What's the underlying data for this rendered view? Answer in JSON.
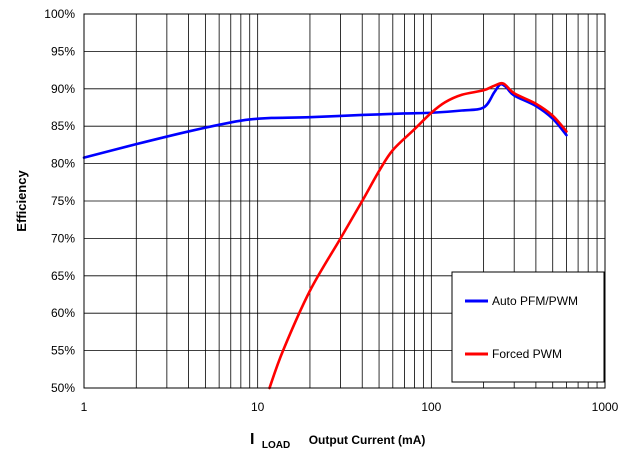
{
  "chart_data": {
    "type": "line",
    "title": "",
    "ylabel": "Efficiency",
    "xlabel": {
      "main": "I",
      "subscript": "LOAD",
      "rest": "Output Current (mA)"
    },
    "x_scale": "log",
    "xlim": [
      1,
      1000
    ],
    "ylim": [
      50,
      100
    ],
    "x_ticks": [
      {
        "value": 1,
        "label": "1"
      },
      {
        "value": 10,
        "label": "10"
      },
      {
        "value": 100,
        "label": "100"
      },
      {
        "value": 1000,
        "label": "1000"
      }
    ],
    "y_ticks": [
      {
        "value": 100,
        "label": "100%"
      },
      {
        "value": 95,
        "label": "95%"
      },
      {
        "value": 90,
        "label": "90%"
      },
      {
        "value": 85,
        "label": "85%"
      },
      {
        "value": 80,
        "label": "80%"
      },
      {
        "value": 75,
        "label": "75%"
      },
      {
        "value": 70,
        "label": "70%"
      },
      {
        "value": 65,
        "label": "65%"
      },
      {
        "value": 60,
        "label": "60%"
      },
      {
        "value": 55,
        "label": "55%"
      },
      {
        "value": 50,
        "label": "50%"
      }
    ],
    "grid": true,
    "legend_position": "bottom-right",
    "series": [
      {
        "name": "Auto PFM/PWM",
        "color": "#0000ff",
        "points": [
          [
            1,
            80.8
          ],
          [
            2,
            82.6
          ],
          [
            4,
            84.3
          ],
          [
            7,
            85.5
          ],
          [
            9,
            85.9
          ],
          [
            12,
            86.1
          ],
          [
            20,
            86.2
          ],
          [
            40,
            86.5
          ],
          [
            70,
            86.7
          ],
          [
            100,
            86.8
          ],
          [
            150,
            87.1
          ],
          [
            200,
            87.5
          ],
          [
            230,
            89.5
          ],
          [
            250,
            90.6
          ],
          [
            270,
            90.2
          ],
          [
            300,
            89.1
          ],
          [
            400,
            87.7
          ],
          [
            500,
            86.0
          ],
          [
            600,
            83.8
          ]
        ]
      },
      {
        "name": "Forced PWM",
        "color": "#ff0000",
        "points": [
          [
            11.7,
            50
          ],
          [
            14,
            55
          ],
          [
            20,
            63
          ],
          [
            30,
            70
          ],
          [
            40,
            75
          ],
          [
            50,
            79
          ],
          [
            60,
            81.8
          ],
          [
            80,
            84.6
          ],
          [
            100,
            86.8
          ],
          [
            120,
            88.2
          ],
          [
            150,
            89.2
          ],
          [
            200,
            89.8
          ],
          [
            230,
            90.4
          ],
          [
            260,
            90.7
          ],
          [
            300,
            89.4
          ],
          [
            400,
            88.0
          ],
          [
            500,
            86.4
          ],
          [
            600,
            84.3
          ]
        ]
      }
    ]
  }
}
